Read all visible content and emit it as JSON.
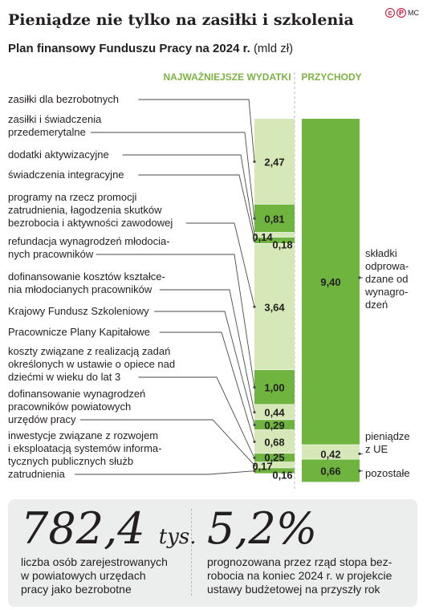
{
  "title": "Pieniądze nie tylko na zasiłki i szkolenia",
  "subtitle_bold": "Plan finansowy Funduszu Pracy na 2024 r.",
  "subtitle_unit": "(mld zł)",
  "logo": {
    "c": "c",
    "p": "P",
    "text": "MC"
  },
  "colors": {
    "light": "#d6e8b8",
    "dark": "#6eb43f",
    "header": "#7cb342",
    "text": "#231f20"
  },
  "chart_data": [
    {
      "type": "bar",
      "title": "NAJWAŻNIEJSZE WYDATKI",
      "stacked": true,
      "categories": [
        "zasiłki dla bezrobotnych",
        "zasiłki i świadczenia przedemerytalne",
        "dodatki aktywizacyjne",
        "świadczenia integracyjne",
        "programy na rzecz promocji zatrudnienia, łagodzenia skutków bezrobocia i aktywności zawodowej",
        "refundacja wynagrodzeń młodocianych pracowników",
        "dofinansowanie kosztów kształcenia młodocianych pracowników",
        "Krajowy Fundusz Szkoleniowy",
        "Pracownicze Plany Kapitałowe",
        "koszty związane z realizacją zadań określonych w ustawie o opiece nad dziećmi w wieku do lat 3",
        "dofinansowanie wynagrodzeń pracowników powiatowych urzędów pracy",
        "inwestycje związane z rozwojem i eksploatacją systemów informatycznych publicznych służb zatrudnienia"
      ],
      "value_labels": [
        "2,47",
        "0,81",
        "0,14",
        "0,18",
        "3,64",
        "1,00",
        "0,44",
        "0,29",
        "0,68",
        "0,25",
        "0,17",
        "0,16"
      ],
      "values": [
        2.47,
        0.81,
        0.14,
        0.18,
        3.64,
        1.0,
        0.44,
        0.29,
        0.68,
        0.25,
        0.17,
        0.16
      ]
    },
    {
      "type": "bar",
      "title": "PRZYCHODY",
      "stacked": true,
      "categories": [
        "składki odprowadzane od wynagrodzeń",
        "pieniądze z UE",
        "pozostałe"
      ],
      "value_labels": [
        "9,40",
        "0,42",
        "0,66"
      ],
      "values": [
        9.4,
        0.42,
        0.66
      ]
    }
  ],
  "labels": [
    [
      "zasiłki dla bezrobotnych"
    ],
    [
      "zasiłki i świadczenia",
      "przedemerytalne"
    ],
    [
      "dodatki aktywizacyjne"
    ],
    [
      "świadczenia integracyjne"
    ],
    [
      "programy na rzecz promocji",
      "zatrudnienia, łagodzenia skutków",
      "bezrobocia i aktywności zawodowej"
    ],
    [
      "refundacja wynagrodzeń młodocia-",
      "nych pracowników"
    ],
    [
      "dofinansowanie kosztów kształce-",
      "nia młodocianych pracowników"
    ],
    [
      "Krajowy Fundusz Szkoleniowy"
    ],
    [
      "Pracownicze Plany Kapitałowe"
    ],
    [
      "koszty związane z realizacją zadań",
      "określonych w ustawie o opiece nad",
      "dziećmi w wieku do lat 3"
    ],
    [
      "dofinansowanie wynagrodzeń",
      "pracowników powiatowych",
      "urzędów pracy"
    ],
    [
      "inwestycje związane z rozwojem",
      "i eksploatacją systemów informa-",
      "tycznych publicznych służb",
      "zatrudnienia"
    ]
  ],
  "income_labels": [
    [
      "składki",
      "odprowa-",
      "dzane od",
      "wynagro-",
      "dzeń"
    ],
    [
      "pieniądze",
      "z UE"
    ],
    [
      "pozostałe"
    ]
  ],
  "stats": [
    {
      "number": "782,4",
      "unit": "tys.",
      "text": [
        "liczba osób zarejestrowanych",
        "w powiatowych urzędach",
        "pracy jako bezrobotne"
      ]
    },
    {
      "number": "5,2%",
      "unit": "",
      "text": [
        "prognozowana przez rząd stopa bez-",
        "robocia na koniec 2024 r. w projekcie",
        "ustawy budżetowej na przyszły rok"
      ]
    }
  ]
}
